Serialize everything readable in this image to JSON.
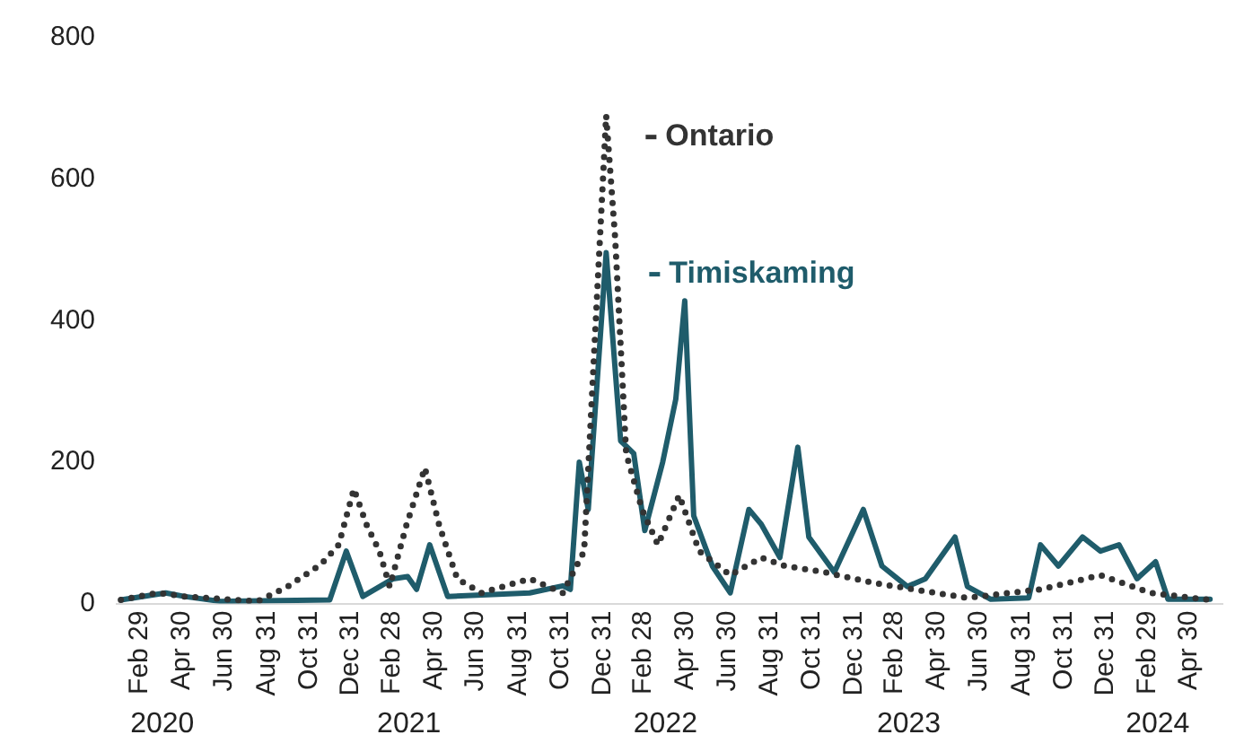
{
  "chart_data": {
    "type": "line",
    "xlim": [
      "2020-01-26",
      "2024-06-17"
    ],
    "ylim": [
      0,
      800
    ],
    "yticks": [
      0,
      200,
      400,
      600,
      800
    ],
    "grid": false,
    "marker": "none",
    "legend": "top",
    "xticks": [
      {
        "value": "2020-02-29",
        "label": "Feb 29"
      },
      {
        "value": "2020-04-30",
        "label": "Apr 30"
      },
      {
        "value": "2020-06-30",
        "label": "Jun 30"
      },
      {
        "value": "2020-08-31",
        "label": "Aug 31"
      },
      {
        "value": "2020-10-31",
        "label": "Oct 31"
      },
      {
        "value": "2020-12-31",
        "label": "Dec 31"
      },
      {
        "value": "2021-02-28",
        "label": "Feb 28"
      },
      {
        "value": "2021-04-30",
        "label": "Apr 30"
      },
      {
        "value": "2021-06-30",
        "label": "Jun 30"
      },
      {
        "value": "2021-08-31",
        "label": "Aug 31"
      },
      {
        "value": "2021-10-31",
        "label": "Oct 31"
      },
      {
        "value": "2021-12-31",
        "label": "Dec 31"
      },
      {
        "value": "2022-02-28",
        "label": "Feb 28"
      },
      {
        "value": "2022-04-30",
        "label": "Apr 30"
      },
      {
        "value": "2022-06-30",
        "label": "Jun 30"
      },
      {
        "value": "2022-08-31",
        "label": "Aug 31"
      },
      {
        "value": "2022-10-31",
        "label": "Oct 31"
      },
      {
        "value": "2022-12-31",
        "label": "Dec 31"
      },
      {
        "value": "2023-02-28",
        "label": "Feb 28"
      },
      {
        "value": "2023-04-30",
        "label": "Apr 30"
      },
      {
        "value": "2023-06-30",
        "label": "Jun 30"
      },
      {
        "value": "2023-08-31",
        "label": "Aug 31"
      },
      {
        "value": "2023-10-31",
        "label": "Oct 31"
      },
      {
        "value": "2023-12-31",
        "label": "Dec 31"
      },
      {
        "value": "2024-02-29",
        "label": "Feb 29"
      },
      {
        "value": "2024-04-30",
        "label": "Apr 30"
      }
    ],
    "x2lim": [
      "2020-01-26",
      "2024-06-17"
    ],
    "x2ticks": [
      {
        "value": "2020-04-01",
        "label": "2020"
      },
      {
        "value": "2021-03-25",
        "label": "2021"
      },
      {
        "value": "2022-04-01",
        "label": "2022"
      },
      {
        "value": "2023-03-20",
        "label": "2023"
      },
      {
        "value": "2024-03-15",
        "label": "2024"
      }
    ],
    "series": [
      {
        "name": "Ontario",
        "color": "#333333",
        "line_style": "dotted",
        "x": [
          "2020-02-01",
          "2020-03-25",
          "2020-05-03",
          "2020-08-17",
          "2020-09-30",
          "2020-11-17",
          "2020-12-13",
          "2021-01-04",
          "2021-01-23",
          "2021-02-10",
          "2021-02-25",
          "2021-03-21",
          "2021-04-17",
          "2021-05-08",
          "2021-06-03",
          "2021-07-08",
          "2021-09-16",
          "2021-11-03",
          "2021-12-04",
          "2022-01-05",
          "2022-01-18",
          "2022-02-03",
          "2022-02-26",
          "2022-03-21",
          "2022-04-21",
          "2022-05-20",
          "2022-07-04",
          "2022-08-18",
          "2022-09-22",
          "2022-11-14",
          "2023-01-24",
          "2023-03-26",
          "2023-06-13",
          "2023-09-27",
          "2023-12-23",
          "2024-03-05",
          "2024-05-30"
        ],
        "values": [
          5,
          15,
          10,
          3,
          24,
          55,
          83,
          162,
          110,
          74,
          24,
          110,
          192,
          110,
          35,
          15,
          35,
          15,
          74,
          690,
          517,
          212,
          133,
          83,
          153,
          74,
          40,
          65,
          53,
          45,
          30,
          20,
          8,
          20,
          40,
          15,
          5
        ]
      },
      {
        "name": "Timiskaming",
        "color": "#1f5c6b",
        "line_style": "solid",
        "x": [
          "2020-02-01",
          "2020-04-06",
          "2020-05-03",
          "2020-06-25",
          "2020-11-30",
          "2020-12-24",
          "2021-01-17",
          "2021-03-02",
          "2021-03-23",
          "2021-04-05",
          "2021-04-24",
          "2021-05-20",
          "2021-09-16",
          "2021-11-03",
          "2021-11-14",
          "2021-11-27",
          "2021-12-10",
          "2022-01-05",
          "2022-01-26",
          "2022-02-14",
          "2022-03-02",
          "2022-03-28",
          "2022-04-16",
          "2022-04-29",
          "2022-05-12",
          "2022-06-08",
          "2022-07-04",
          "2022-07-31",
          "2022-08-18",
          "2022-09-14",
          "2022-10-10",
          "2022-10-26",
          "2022-12-02",
          "2023-01-13",
          "2023-02-09",
          "2023-03-18",
          "2023-04-13",
          "2023-05-26",
          "2023-06-13",
          "2023-07-17",
          "2023-09-10",
          "2023-09-27",
          "2023-10-23",
          "2023-11-27",
          "2023-12-23",
          "2024-01-19",
          "2024-02-14",
          "2024-03-12",
          "2024-03-30",
          "2024-05-30"
        ],
        "values": [
          5,
          15,
          10,
          3,
          5,
          74,
          10,
          35,
          38,
          20,
          83,
          10,
          15,
          25,
          20,
          200,
          133,
          496,
          230,
          212,
          103,
          200,
          289,
          428,
          124,
          53,
          15,
          133,
          112,
          65,
          221,
          94,
          44,
          133,
          53,
          24,
          35,
          94,
          24,
          6,
          8,
          83,
          53,
          94,
          74,
          83,
          35,
          59,
          6,
          6
        ]
      }
    ]
  }
}
